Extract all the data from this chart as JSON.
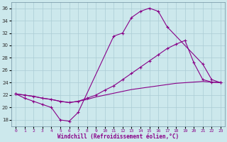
{
  "xlabel": "Windchill (Refroidissement éolien,°C)",
  "bg_color": "#cce8ec",
  "line_color": "#880088",
  "grid_color": "#aaccd4",
  "xlim": [
    -0.5,
    23.5
  ],
  "ylim": [
    17,
    37
  ],
  "yticks": [
    18,
    20,
    22,
    24,
    26,
    28,
    30,
    32,
    34,
    36
  ],
  "xticks": [
    0,
    1,
    2,
    3,
    4,
    5,
    6,
    7,
    8,
    9,
    10,
    11,
    12,
    13,
    14,
    15,
    16,
    17,
    18,
    19,
    20,
    21,
    22,
    23
  ],
  "curve_smooth": {
    "x": [
      0,
      1,
      2,
      3,
      4,
      5,
      6,
      7,
      8,
      9,
      10,
      11,
      12,
      13,
      14,
      15,
      16,
      17,
      18,
      19,
      20,
      21,
      22,
      23
    ],
    "y": [
      22.2,
      22.0,
      21.8,
      21.5,
      21.3,
      21.0,
      20.8,
      21.0,
      21.3,
      21.7,
      22.0,
      22.3,
      22.6,
      22.9,
      23.1,
      23.3,
      23.5,
      23.7,
      23.9,
      24.0,
      24.1,
      24.2,
      24.1,
      24.0
    ]
  },
  "curve_mid": {
    "x": [
      0,
      1,
      2,
      3,
      4,
      5,
      6,
      7,
      8,
      9,
      10,
      11,
      12,
      13,
      14,
      15,
      16,
      17,
      18,
      19,
      20,
      21,
      22,
      23
    ],
    "y": [
      22.2,
      22.0,
      21.8,
      21.5,
      21.3,
      21.0,
      20.8,
      21.0,
      21.5,
      22.0,
      22.8,
      23.5,
      24.5,
      25.5,
      26.5,
      27.5,
      28.5,
      29.5,
      30.2,
      30.8,
      27.2,
      24.5,
      24.1,
      24.0
    ]
  },
  "curve_peak": {
    "x": [
      0,
      1,
      2,
      3,
      4,
      5,
      6,
      7,
      11,
      12,
      13,
      14,
      15,
      16,
      17,
      21,
      22,
      23
    ],
    "y": [
      22.2,
      21.5,
      21.0,
      20.5,
      20.0,
      18.0,
      17.8,
      19.2,
      31.5,
      32.0,
      34.5,
      35.5,
      36.0,
      35.5,
      33.0,
      27.0,
      24.5,
      24.0
    ]
  }
}
